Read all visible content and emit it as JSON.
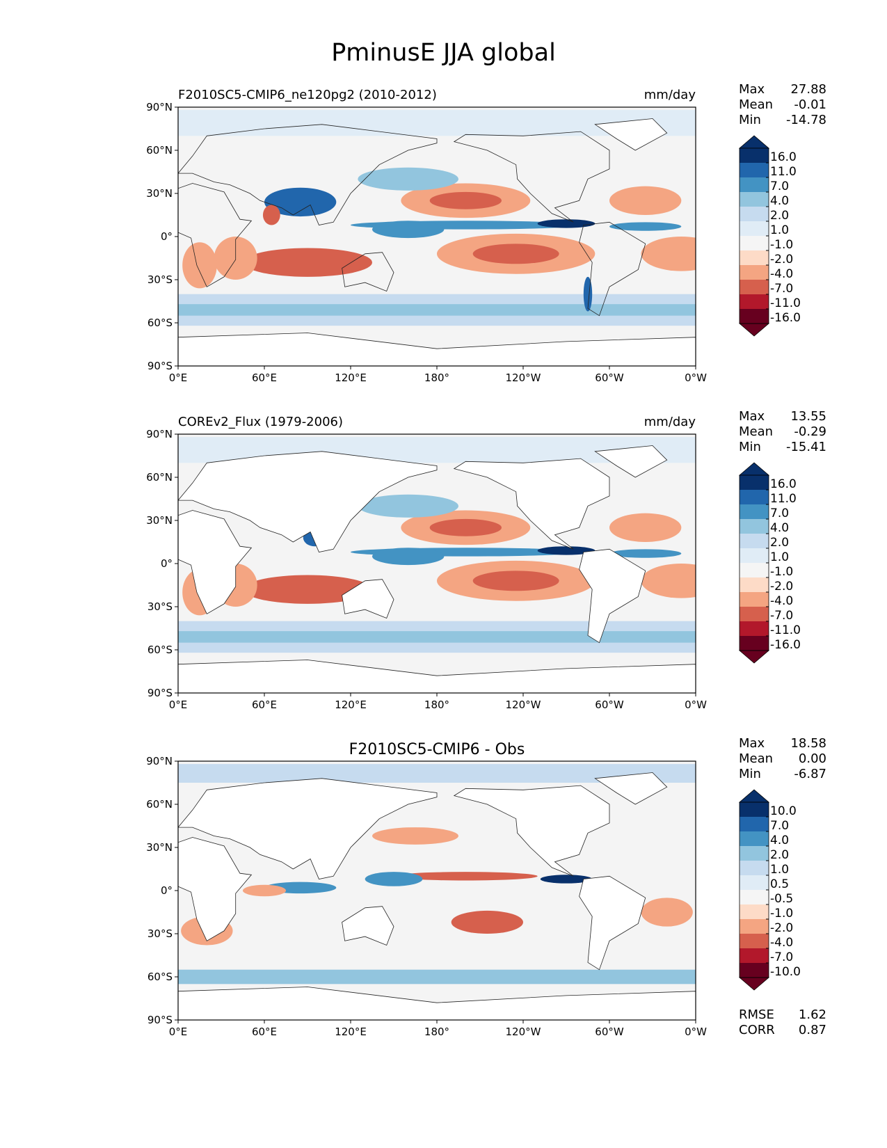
{
  "figure": {
    "title": "PminusE JJA global"
  },
  "palette": {
    "blues": [
      "#08306b",
      "#2166ac",
      "#4393c3",
      "#92c5de",
      "#c6dbef",
      "#e0ecf6",
      "#f5f5f5"
    ],
    "reds": [
      "#fddbc7",
      "#f4a582",
      "#d6604d",
      "#b2182b",
      "#67001f"
    ],
    "land": "#ffffff",
    "neutral": "#f4f4f4"
  },
  "chart_data": [
    {
      "type": "heatmap",
      "title_left": "F2010SC5-CMIP6_ne120pg2 (2010-2012)",
      "title_center": "",
      "units": "mm/day",
      "stats": {
        "max_label": "Max",
        "max": "27.88",
        "mean_label": "Mean",
        "mean": "-0.01",
        "min_label": "Min",
        "min": "-14.78"
      },
      "colorbar_levels": [
        "16.0",
        "11.0",
        "7.0",
        "4.0",
        "2.0",
        "1.0",
        "-1.0",
        "-2.0",
        "-4.0",
        "-7.0",
        "-11.0",
        "-16.0"
      ],
      "xticks": [
        "0°E",
        "60°E",
        "120°E",
        "180°",
        "120°W",
        "60°W",
        "0°W"
      ],
      "yticks": [
        "90°N",
        "60°N",
        "30°N",
        "0°",
        "30°S",
        "60°S",
        "90°S"
      ],
      "xlim": [
        0,
        360
      ],
      "ylim": [
        -90,
        90
      ],
      "land_fill": false
    },
    {
      "type": "heatmap",
      "title_left": "COREv2_Flux (1979-2006)",
      "title_center": "",
      "units": "mm/day",
      "stats": {
        "max_label": "Max",
        "max": "13.55",
        "mean_label": "Mean",
        "mean": "-0.29",
        "min_label": "Min",
        "min": "-15.41"
      },
      "colorbar_levels": [
        "16.0",
        "11.0",
        "7.0",
        "4.0",
        "2.0",
        "1.0",
        "-1.0",
        "-2.0",
        "-4.0",
        "-7.0",
        "-11.0",
        "-16.0"
      ],
      "xticks": [
        "0°E",
        "60°E",
        "120°E",
        "180°",
        "120°W",
        "60°W",
        "0°W"
      ],
      "yticks": [
        "90°N",
        "60°N",
        "30°N",
        "0°",
        "30°S",
        "60°S",
        "90°S"
      ],
      "xlim": [
        0,
        360
      ],
      "ylim": [
        -90,
        90
      ],
      "land_fill": true
    },
    {
      "type": "heatmap",
      "title_left": "",
      "title_center": "F2010SC5-CMIP6 - Obs",
      "units": "",
      "stats": {
        "max_label": "Max",
        "max": "18.58",
        "mean_label": "Mean",
        "mean": "0.00",
        "min_label": "Min",
        "min": "-6.87"
      },
      "colorbar_levels": [
        "10.0",
        "7.0",
        "4.0",
        "2.0",
        "1.0",
        "0.5",
        "-0.5",
        "-1.0",
        "-2.0",
        "-4.0",
        "-7.0",
        "-10.0"
      ],
      "xticks": [
        "0°E",
        "60°E",
        "120°E",
        "180°",
        "120°W",
        "60°W",
        "0°W"
      ],
      "yticks": [
        "90°N",
        "60°N",
        "30°N",
        "0°",
        "30°S",
        "60°S",
        "90°S"
      ],
      "xlim": [
        0,
        360
      ],
      "ylim": [
        -90,
        90
      ],
      "land_fill": true,
      "metrics": {
        "rmse_label": "RMSE",
        "rmse": "1.62",
        "corr_label": "CORR",
        "corr": "0.87"
      }
    }
  ]
}
